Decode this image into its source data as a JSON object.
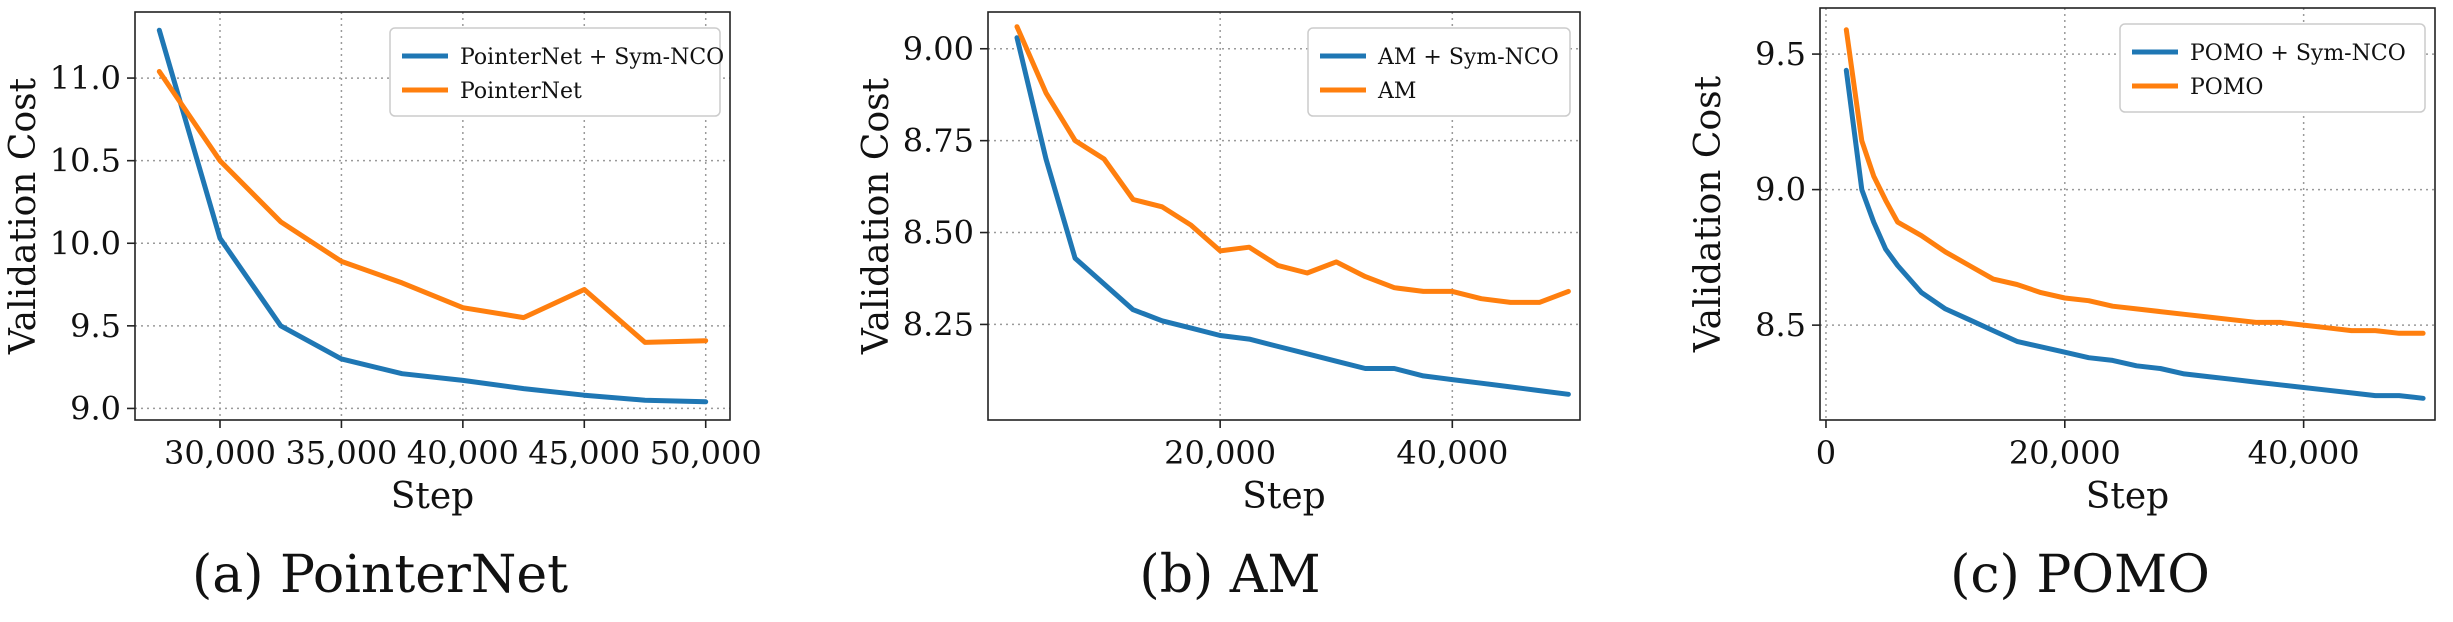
{
  "chart_data": [
    {
      "type": "line",
      "caption": "(a) PointerNet",
      "xlabel": "Step",
      "ylabel": "Validation Cost",
      "xlim": [
        26500,
        51000
      ],
      "ylim": [
        8.93,
        11.4
      ],
      "xticks": [
        30000,
        35000,
        40000,
        45000,
        50000
      ],
      "xtick_labels": [
        "30,000",
        "35,000",
        "40,000",
        "45,000",
        "50,000"
      ],
      "yticks": [
        9.0,
        9.5,
        10.0,
        10.5,
        11.0
      ],
      "ytick_labels": [
        "9.0",
        "9.5",
        "10.0",
        "10.5",
        "11.0"
      ],
      "grid": true,
      "legend_position": "top-right",
      "series": [
        {
          "name": "PointerNet + Sym-NCO",
          "color": "#1f77b4",
          "x": [
            27500,
            30000,
            32500,
            35000,
            37500,
            40000,
            42500,
            45000,
            47500,
            50000
          ],
          "y": [
            11.29,
            10.03,
            9.5,
            9.3,
            9.21,
            9.17,
            9.12,
            9.08,
            9.05,
            9.04
          ]
        },
        {
          "name": "PointerNet",
          "color": "#ff7f0e",
          "x": [
            27500,
            30000,
            32500,
            35000,
            37500,
            40000,
            42500,
            45000,
            47500,
            50000
          ],
          "y": [
            11.04,
            10.5,
            10.13,
            9.89,
            9.76,
            9.61,
            9.55,
            9.72,
            9.4,
            9.41
          ]
        }
      ]
    },
    {
      "type": "line",
      "caption": "(b) AM",
      "xlabel": "Step",
      "ylabel": "Validation Cost",
      "xlim": [
        0,
        51000
      ],
      "ylim": [
        7.99,
        9.1
      ],
      "xticks": [
        20000,
        40000
      ],
      "xtick_labels": [
        "20,000",
        "40,000"
      ],
      "yticks": [
        8.25,
        8.5,
        8.75,
        9.0
      ],
      "ytick_labels": [
        "8.25",
        "8.50",
        "8.75",
        "9.00"
      ],
      "grid": true,
      "legend_position": "top-right",
      "series": [
        {
          "name": "AM + Sym-NCO",
          "color": "#1f77b4",
          "x": [
            2500,
            5000,
            7500,
            10000,
            12500,
            15000,
            17500,
            20000,
            22500,
            25000,
            27500,
            30000,
            32500,
            35000,
            37500,
            40000,
            42500,
            45000,
            47500,
            50000
          ],
          "y": [
            9.03,
            8.7,
            8.43,
            8.36,
            8.29,
            8.26,
            8.24,
            8.22,
            8.21,
            8.19,
            8.17,
            8.15,
            8.13,
            8.13,
            8.11,
            8.1,
            8.09,
            8.08,
            8.07,
            8.06
          ]
        },
        {
          "name": "AM",
          "color": "#ff7f0e",
          "x": [
            2500,
            5000,
            7500,
            10000,
            12500,
            15000,
            17500,
            20000,
            22500,
            25000,
            27500,
            30000,
            32500,
            35000,
            37500,
            40000,
            42500,
            45000,
            47500,
            50000
          ],
          "y": [
            9.06,
            8.88,
            8.75,
            8.7,
            8.59,
            8.57,
            8.52,
            8.45,
            8.46,
            8.41,
            8.39,
            8.42,
            8.38,
            8.35,
            8.34,
            8.34,
            8.32,
            8.31,
            8.31,
            8.34
          ]
        }
      ]
    },
    {
      "type": "line",
      "caption": "(c) POMO",
      "xlabel": "Step",
      "ylabel": "Validation Cost",
      "xlim": [
        -500,
        51000
      ],
      "ylim": [
        8.15,
        9.67
      ],
      "xticks": [
        0,
        20000,
        40000
      ],
      "xtick_labels": [
        "0",
        "20,000",
        "40,000"
      ],
      "yticks": [
        8.5,
        9.0,
        9.5
      ],
      "ytick_labels": [
        "8.5",
        "9.0",
        "9.5"
      ],
      "grid": true,
      "legend_position": "top-right",
      "series": [
        {
          "name": "POMO + Sym-NCO",
          "color": "#1f77b4",
          "x": [
            1700,
            3000,
            4000,
            5000,
            6000,
            8000,
            10000,
            12000,
            14000,
            16000,
            18000,
            20000,
            22000,
            24000,
            26000,
            28000,
            30000,
            32000,
            34000,
            36000,
            38000,
            40000,
            42000,
            44000,
            46000,
            48000,
            50000
          ],
          "y": [
            9.44,
            9.0,
            8.88,
            8.78,
            8.72,
            8.62,
            8.56,
            8.52,
            8.48,
            8.44,
            8.42,
            8.4,
            8.38,
            8.37,
            8.35,
            8.34,
            8.32,
            8.31,
            8.3,
            8.29,
            8.28,
            8.27,
            8.26,
            8.25,
            8.24,
            8.24,
            8.23
          ]
        },
        {
          "name": "POMO",
          "color": "#ff7f0e",
          "x": [
            1700,
            3000,
            4000,
            5000,
            6000,
            8000,
            10000,
            12000,
            14000,
            16000,
            18000,
            20000,
            22000,
            24000,
            26000,
            28000,
            30000,
            32000,
            34000,
            36000,
            38000,
            40000,
            42000,
            44000,
            46000,
            48000,
            50000
          ],
          "y": [
            9.59,
            9.18,
            9.05,
            8.96,
            8.88,
            8.83,
            8.77,
            8.72,
            8.67,
            8.65,
            8.62,
            8.6,
            8.59,
            8.57,
            8.56,
            8.55,
            8.54,
            8.53,
            8.52,
            8.51,
            8.51,
            8.5,
            8.49,
            8.48,
            8.48,
            8.47,
            8.47
          ]
        }
      ]
    }
  ]
}
